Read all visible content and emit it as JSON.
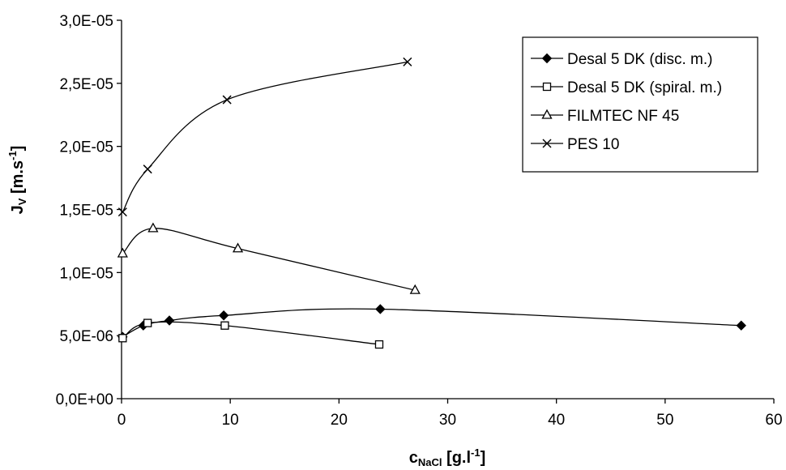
{
  "chart_data": {
    "type": "line",
    "xlabel": {
      "main": "c",
      "sub": "NaCl",
      "unit": " [g.l",
      "sup": "-1",
      "close": "]"
    },
    "ylabel": {
      "main": "J",
      "sub": "V",
      "unit": " [m.s",
      "sup": "-1",
      "close": "]"
    },
    "xlim": [
      0,
      60
    ],
    "ylim": [
      0,
      3e-05
    ],
    "x_ticks": [
      0,
      10,
      20,
      30,
      40,
      50,
      60
    ],
    "x_tick_labels": [
      "0",
      "10",
      "20",
      "30",
      "40",
      "50",
      "60"
    ],
    "y_ticks": [
      0,
      5e-06,
      1e-05,
      1.5e-05,
      2e-05,
      2.5e-05,
      3e-05
    ],
    "y_tick_labels": [
      "0,0E+00",
      "5,0E-06",
      "1,0E-05",
      "1,5E-05",
      "2,0E-05",
      "2,5E-05",
      "3,0E-05"
    ],
    "grid": false,
    "legend_position": "top-right",
    "series": [
      {
        "name": "Desal 5 DK (disc. m.)",
        "marker": "diamond",
        "x": [
          0.1,
          2.0,
          4.4,
          9.4,
          23.8,
          57.0
        ],
        "y": [
          4.9e-06,
          5.8e-06,
          6.2e-06,
          6.6e-06,
          7.1e-06,
          5.8e-06
        ]
      },
      {
        "name": "Desal 5 DK (spiral. m.)",
        "marker": "square",
        "x": [
          0.1,
          2.4,
          9.5,
          23.7
        ],
        "y": [
          4.8e-06,
          6e-06,
          5.8e-06,
          4.3e-06
        ]
      },
      {
        "name": "FILMTEC NF 45",
        "marker": "triangle",
        "x": [
          0.1,
          2.9,
          10.7,
          27.0
        ],
        "y": [
          1.15e-05,
          1.35e-05,
          1.19e-05,
          8.6e-06
        ]
      },
      {
        "name": "PES 10",
        "marker": "x",
        "x": [
          0.1,
          2.4,
          9.7,
          26.3
        ],
        "y": [
          1.48e-05,
          1.82e-05,
          2.37e-05,
          2.67e-05
        ]
      }
    ]
  }
}
